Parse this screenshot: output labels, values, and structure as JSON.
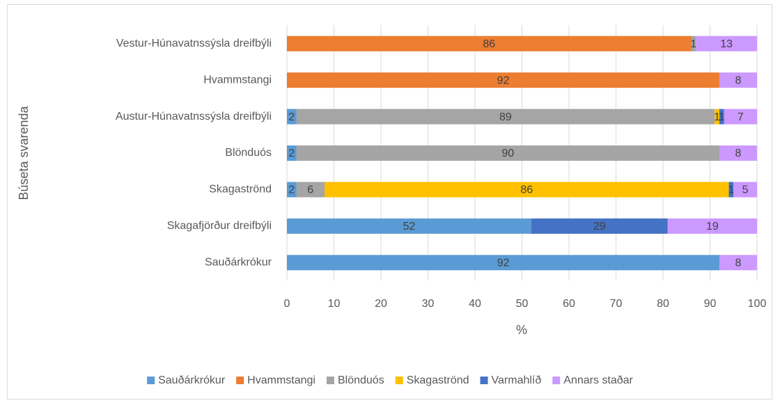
{
  "chart_data": {
    "type": "stacked-bar-horizontal",
    "y_axis_label": "Búseta svarenda",
    "x_axis_label": "%",
    "categories": [
      "Vestur-Húnavatnssýsla dreifbýli",
      "Hvammstangi",
      "Austur-Húnavatnssýsla dreifbýli",
      "Blönduós",
      "Skagaströnd",
      "Skagafjörður dreifbýli",
      "Sauðárkrókur"
    ],
    "series": [
      {
        "name": "Sauðárkrókur",
        "color": "#5b9bd5",
        "values": [
          null,
          null,
          2,
          2,
          2,
          52,
          92
        ]
      },
      {
        "name": "Hvammstangi",
        "color": "#ed7d31",
        "values": [
          86,
          92,
          null,
          null,
          null,
          null,
          null
        ]
      },
      {
        "name": "Blönduós",
        "color": "#a5a5a5",
        "values": [
          1,
          null,
          89,
          90,
          6,
          null,
          null
        ]
      },
      {
        "name": "Skagaströnd",
        "color": "#ffc000",
        "values": [
          null,
          null,
          1,
          null,
          86,
          null,
          null
        ]
      },
      {
        "name": "Varmahlíð",
        "color": "#4472c4",
        "values": [
          null,
          null,
          1,
          null,
          1,
          29,
          null
        ]
      },
      {
        "name": "Annars staðar",
        "color": "#cc99ff",
        "values": [
          13,
          8,
          7,
          8,
          5,
          19,
          8
        ]
      }
    ],
    "xlim": [
      0,
      100
    ],
    "xticks": [
      0,
      10,
      20,
      30,
      40,
      50,
      60,
      70,
      80,
      90,
      100
    ],
    "grid": true,
    "legend": "bottom"
  }
}
